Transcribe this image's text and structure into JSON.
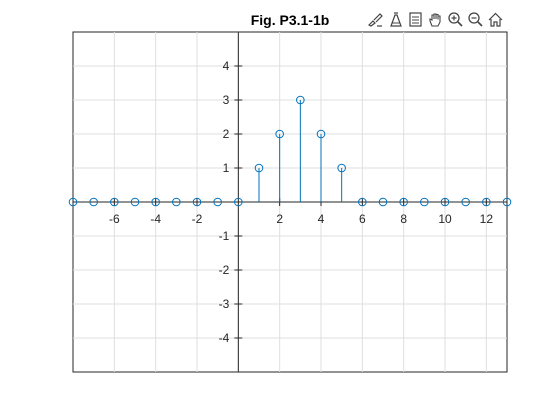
{
  "toolbar": {
    "icons": [
      "brush-icon",
      "data-cursor-icon",
      "legend-insert-icon",
      "pan-hand-icon",
      "zoom-in-icon",
      "zoom-out-icon",
      "home-icon"
    ]
  },
  "colors": {
    "stem": "#0072BD",
    "axis": "#262626",
    "grid": "#DFDFDF",
    "icon": "#444444"
  },
  "chart_data": {
    "type": "stem",
    "title": "Fig. P3.1-1b",
    "xlabel": "",
    "ylabel": "",
    "xlim": [
      -8,
      13
    ],
    "ylim": [
      -5,
      5
    ],
    "grid": true,
    "axes_location": "origin",
    "x_ticks": [
      -6,
      -4,
      -2,
      2,
      4,
      6,
      8,
      10,
      12
    ],
    "y_ticks": [
      -4,
      -3,
      -2,
      -1,
      1,
      2,
      3,
      4
    ],
    "x": [
      -8,
      -7,
      -6,
      -5,
      -4,
      -3,
      -2,
      -1,
      0,
      1,
      2,
      3,
      4,
      5,
      6,
      7,
      8,
      9,
      10,
      11,
      12,
      13
    ],
    "y": [
      0,
      0,
      0,
      0,
      0,
      0,
      0,
      0,
      0,
      1,
      2,
      3,
      2,
      1,
      0,
      0,
      0,
      0,
      0,
      0,
      0,
      0
    ]
  }
}
